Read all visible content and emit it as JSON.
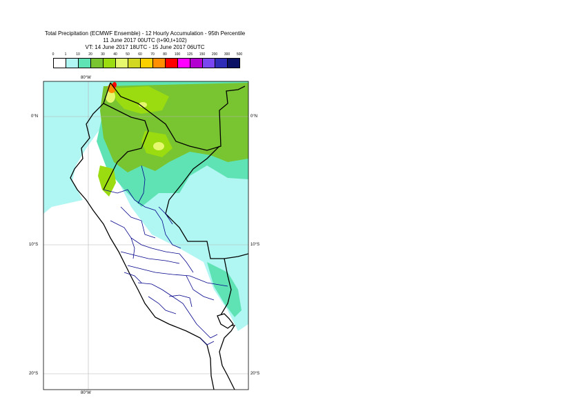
{
  "title": {
    "line1": "Total Precipitation (ECMWF Ensemble) - 12 Hourly Accumulation - 95th Percentile",
    "line2": "11 June 2017 00UTC (t+90,t+102)",
    "line3": "VT: 14 June 2017 18UTC - 15 June 2017 06UTC"
  },
  "legend": {
    "ticks": [
      "0",
      "1",
      "10",
      "20",
      "30",
      "40",
      "50",
      "60",
      "70",
      "80",
      "100",
      "125",
      "150",
      "200",
      "300",
      "500"
    ],
    "colors": [
      "#ffffff",
      "#b0f6f2",
      "#5fe3b5",
      "#79c431",
      "#9adc10",
      "#e6f86d",
      "#d2d821",
      "#fbd000",
      "#ff8f00",
      "#ff0000",
      "#ff00ff",
      "#b300d0",
      "#7a46f2",
      "#2f2cb7",
      "#0b1165"
    ]
  },
  "map": {
    "lon_label": "80°W",
    "lat_labels": [
      "0°N",
      "10°S",
      "20°S"
    ],
    "colors": {
      "land_low": "#b0f6f2",
      "land_mid": "#5fe3b5",
      "land_green": "#79c431",
      "land_lime": "#9adc10",
      "yellow": "#e6f86d",
      "orange": "#ff8f00",
      "red": "#ff0000",
      "border": "#000000",
      "admin": "#00008b",
      "grid": "#b4b4b4"
    }
  }
}
